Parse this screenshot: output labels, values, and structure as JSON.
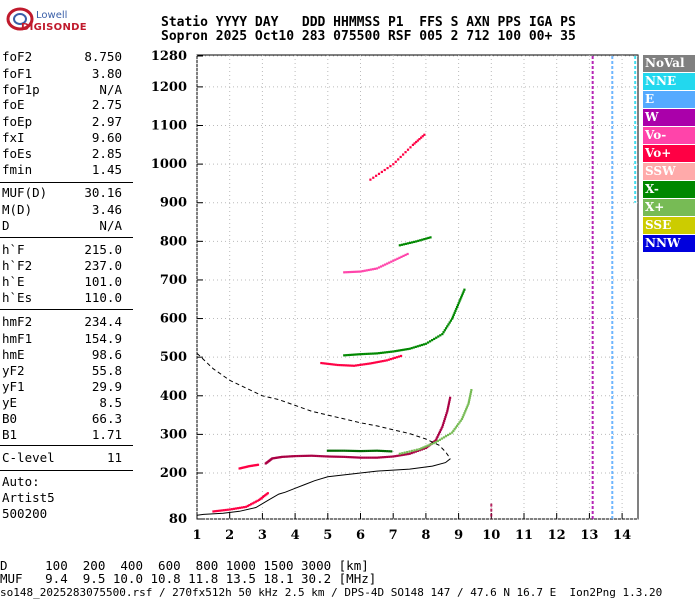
{
  "logo": {
    "top": "Lowell",
    "main": "DIGISONDE"
  },
  "header": {
    "line1": "Statio YYYY DAY   DDD HHMMSS P1  FFS S AXN PPS IGA PS",
    "line2": "Sopron 2025 Oct10 283 075500 RSF 005 2 712 100 00+ 35"
  },
  "params": [
    {
      "name": "foF2",
      "value": "8.750"
    },
    {
      "name": "foF1",
      "value": "3.80"
    },
    {
      "name": "foF1p",
      "value": "N/A"
    },
    {
      "name": "foE",
      "value": "2.75"
    },
    {
      "name": "foEp",
      "value": "2.97"
    },
    {
      "name": "fxI",
      "value": "9.60"
    },
    {
      "name": "foEs",
      "value": "2.85"
    },
    {
      "name": "fmin",
      "value": "1.45"
    },
    {
      "name": "MUF(D)",
      "value": "30.16"
    },
    {
      "name": "M(D)",
      "value": "3.46"
    },
    {
      "name": "D",
      "value": "N/A"
    },
    {
      "name": "h`F",
      "value": "215.0"
    },
    {
      "name": "h`F2",
      "value": "237.0"
    },
    {
      "name": "h`E",
      "value": "101.0"
    },
    {
      "name": "h`Es",
      "value": "110.0"
    },
    {
      "name": "hmF2",
      "value": "234.4"
    },
    {
      "name": "hmF1",
      "value": "154.9"
    },
    {
      "name": "hmE",
      "value": "98.6"
    },
    {
      "name": "yF2",
      "value": "55.8"
    },
    {
      "name": "yF1",
      "value": "29.9"
    },
    {
      "name": "yE",
      "value": "8.5"
    },
    {
      "name": "B0",
      "value": "66.3"
    },
    {
      "name": "B1",
      "value": "1.71"
    },
    {
      "name": "C-level",
      "value": "11"
    }
  ],
  "auto": {
    "line1": "Auto:",
    "line2": "Artist5",
    "line3": "500200"
  },
  "legend": [
    {
      "label": "NoVal",
      "color": "#808080"
    },
    {
      "label": "NNE",
      "color": "#22d8ee"
    },
    {
      "label": "E",
      "color": "#55aaff"
    },
    {
      "label": "W",
      "color": "#aa00aa"
    },
    {
      "label": "Vo-",
      "color": "#ff44aa"
    },
    {
      "label": "Vo+",
      "color": "#ff0044"
    },
    {
      "label": "SSW",
      "color": "#ffaaaa"
    },
    {
      "label": "X-",
      "color": "#008800"
    },
    {
      "label": "X+",
      "color": "#77bb55"
    },
    {
      "label": "SSE",
      "color": "#cccc00"
    },
    {
      "label": "NNW",
      "color": "#0000dd"
    }
  ],
  "chart_data": {
    "type": "scatter",
    "title": "",
    "xlabel": "",
    "ylabel": "",
    "xlim": [
      1,
      14.5
    ],
    "ylim": [
      80,
      1280
    ],
    "xticks": [
      "1",
      "2",
      "3",
      "4",
      "5",
      "6",
      "7",
      "8",
      "9",
      "10",
      "11",
      "12",
      "13",
      "14"
    ],
    "yticks": [
      "80",
      "200",
      "300",
      "400",
      "500",
      "600",
      "700",
      "800",
      "900",
      "1000",
      "1100",
      "1200",
      "1280"
    ],
    "series": [
      {
        "color": "#aa0044",
        "points": [
          [
            3.1,
            225
          ],
          [
            3.3,
            238
          ],
          [
            3.6,
            242
          ],
          [
            4.0,
            244
          ],
          [
            4.5,
            245
          ],
          [
            5.0,
            243
          ],
          [
            5.5,
            242
          ],
          [
            6.0,
            240
          ],
          [
            6.5,
            240
          ],
          [
            7.0,
            243
          ],
          [
            7.5,
            250
          ],
          [
            8.0,
            265
          ],
          [
            8.3,
            285
          ],
          [
            8.5,
            320
          ],
          [
            8.65,
            360
          ],
          [
            8.75,
            400
          ]
        ]
      },
      {
        "color": "#006600",
        "points": [
          [
            5.0,
            258
          ],
          [
            5.5,
            258
          ],
          [
            6.0,
            257
          ],
          [
            6.5,
            258
          ],
          [
            7.0,
            256
          ]
        ]
      },
      {
        "color": "#77bb55",
        "points": [
          [
            7.2,
            250
          ],
          [
            7.8,
            262
          ],
          [
            8.3,
            280
          ],
          [
            8.8,
            305
          ],
          [
            9.1,
            340
          ],
          [
            9.3,
            380
          ],
          [
            9.4,
            420
          ]
        ]
      },
      {
        "color": "#ff0044",
        "points": [
          [
            2.3,
            212
          ],
          [
            2.6,
            218
          ],
          [
            2.9,
            222
          ]
        ]
      },
      {
        "color": "#ff0044",
        "points": [
          [
            4.8,
            485
          ],
          [
            5.3,
            480
          ],
          [
            5.8,
            478
          ],
          [
            6.3,
            484
          ],
          [
            6.8,
            492
          ],
          [
            7.3,
            505
          ]
        ]
      },
      {
        "color": "#008800",
        "points": [
          [
            5.5,
            505
          ],
          [
            6.0,
            508
          ],
          [
            6.5,
            510
          ],
          [
            7.0,
            515
          ],
          [
            7.5,
            522
          ],
          [
            8.0,
            535
          ],
          [
            8.5,
            560
          ],
          [
            8.8,
            600
          ],
          [
            9.0,
            640
          ],
          [
            9.2,
            680
          ]
        ]
      },
      {
        "color": "#ff44aa",
        "points": [
          [
            5.5,
            720
          ],
          [
            6.0,
            722
          ],
          [
            6.5,
            730
          ],
          [
            7.0,
            750
          ],
          [
            7.5,
            770
          ]
        ]
      },
      {
        "color": "#008800",
        "points": [
          [
            7.2,
            790
          ],
          [
            7.7,
            800
          ],
          [
            8.2,
            812
          ]
        ]
      },
      {
        "color": "#ff0044",
        "points": [
          [
            6.3,
            960
          ],
          [
            7.0,
            1000
          ],
          [
            7.6,
            1050
          ],
          [
            8.0,
            1080
          ]
        ]
      },
      {
        "color": "#ff0044",
        "points": [
          [
            1.5,
            100
          ],
          [
            2.0,
            105
          ],
          [
            2.5,
            112
          ],
          [
            2.9,
            130
          ],
          [
            3.2,
            150
          ]
        ]
      }
    ],
    "traces": [
      {
        "style": "dashed",
        "points": [
          [
            1.0,
            510
          ],
          [
            1.5,
            470
          ],
          [
            2.0,
            440
          ],
          [
            2.5,
            420
          ],
          [
            3.0,
            400
          ],
          [
            3.5,
            390
          ],
          [
            4.0,
            375
          ],
          [
            4.5,
            360
          ],
          [
            5.0,
            350
          ],
          [
            5.5,
            340
          ],
          [
            6.0,
            330
          ],
          [
            6.5,
            322
          ],
          [
            7.0,
            312
          ],
          [
            7.5,
            302
          ],
          [
            8.0,
            288
          ],
          [
            8.4,
            272
          ],
          [
            8.6,
            255
          ],
          [
            8.75,
            237
          ]
        ]
      },
      {
        "style": "solid",
        "points": [
          [
            8.75,
            237
          ],
          [
            8.6,
            227
          ],
          [
            8.2,
            218
          ],
          [
            7.5,
            210
          ],
          [
            6.5,
            205
          ],
          [
            6.0,
            200
          ],
          [
            5.5,
            195
          ],
          [
            5.0,
            190
          ],
          [
            4.6,
            180
          ],
          [
            4.3,
            170
          ],
          [
            4.0,
            160
          ],
          [
            3.7,
            150
          ],
          [
            3.5,
            145
          ],
          [
            3.2,
            130
          ],
          [
            2.8,
            110
          ],
          [
            2.3,
            100
          ],
          [
            1.8,
            95
          ],
          [
            1.2,
            92
          ],
          [
            1.0,
            90
          ]
        ]
      }
    ],
    "vertical_streaks": [
      {
        "x": 10.0,
        "y0": 80,
        "y1": 120,
        "color": "#aa0044"
      },
      {
        "x": 13.1,
        "y0": 80,
        "y1": 1280,
        "color": "#aa00aa"
      },
      {
        "x": 13.7,
        "y0": 80,
        "y1": 1280,
        "color": "#55aaff"
      },
      {
        "x": 14.4,
        "y0": 900,
        "y1": 1280,
        "color": "#22d8ee"
      }
    ]
  },
  "footer": {
    "dist": "D     100  200  400  600  800 1000 1500 3000 [km]",
    "muf": "MUF   9.4  9.5 10.0 10.8 11.8 13.5 18.1 30.2 [MHz]",
    "meta": "so148_2025283075500.rsf / 270fx512h 50 kHz 2.5 km / DPS-4D SO148 147 / 47.6 N 16.7 E  Ion2Png 1.3.20"
  }
}
